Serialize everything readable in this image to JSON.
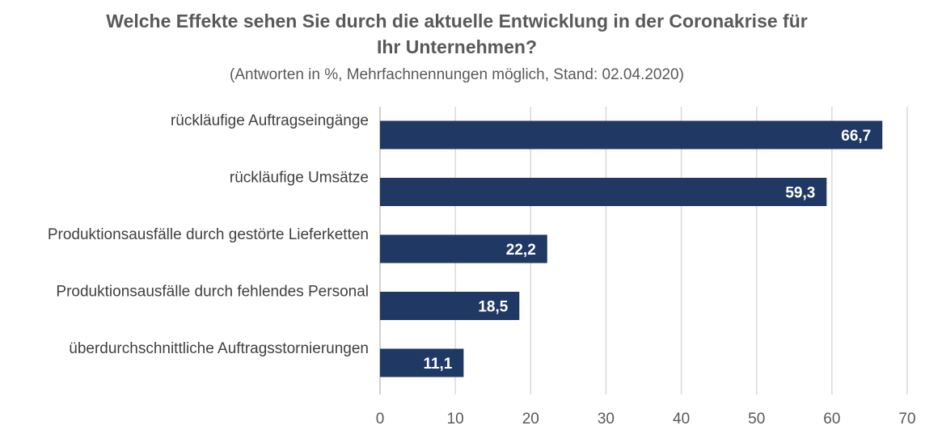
{
  "chart_data": {
    "type": "bar",
    "orientation": "horizontal",
    "title_lines": [
      "Welche Effekte sehen Sie durch die aktuelle Entwicklung in der Coronakrise für",
      "Ihr Unternehmen?"
    ],
    "subtitle": "(Antworten in %, Mehrfachnennungen möglich, Stand: 02.04.2020)",
    "categories": [
      "rückläufige Auftragseingänge",
      "rückläufige Umsätze",
      "Produktionsausfälle durch gestörte Lieferketten",
      "Produktionsausfälle durch fehlendes Personal",
      "überdurchschnittliche Auftragsstornierungen"
    ],
    "values": [
      66.7,
      59.3,
      22.2,
      18.5,
      11.1
    ],
    "value_labels": [
      "66,7",
      "59,3",
      "22,2",
      "18,5",
      "11,1"
    ],
    "xlim": [
      0,
      70
    ],
    "x_ticks": [
      "0",
      "10",
      "20",
      "30",
      "40",
      "50",
      "60",
      "70"
    ],
    "grid": true,
    "legend": "none",
    "bar_color": "#203864",
    "value_label_color": "#ffffff"
  }
}
